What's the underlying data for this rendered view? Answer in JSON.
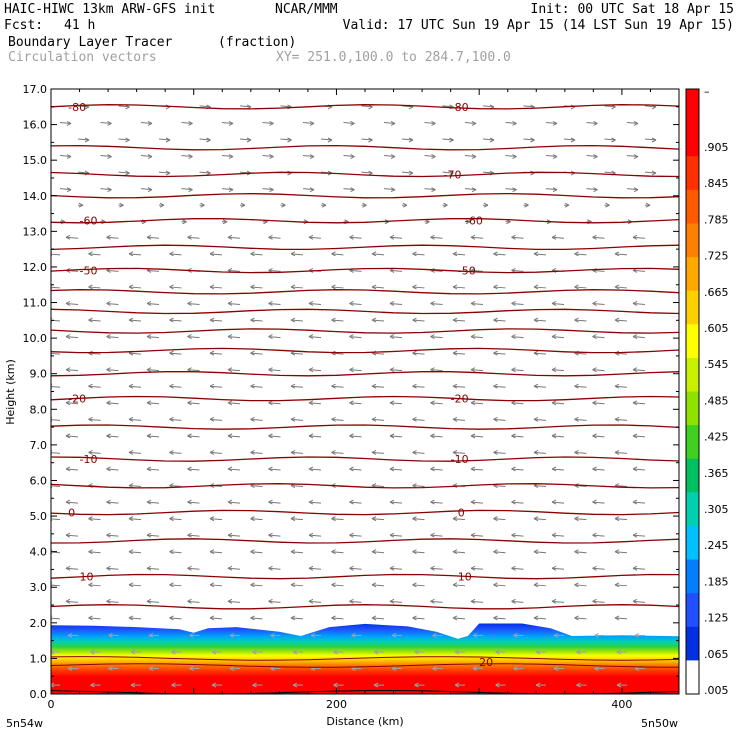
{
  "header": {
    "model": "HAIC-HIWC 13km ARW-GFS init",
    "org": "NCAR/MMM",
    "init": "Init: 00 UTC Sat 18 Apr 15",
    "fcst_label": "Fcst:",
    "fcst_value": "41 h",
    "valid": "Valid: 17 UTC Sun 19 Apr 15 (14 LST Sun 19 Apr 15)",
    "field": "Boundary Layer Tracer",
    "units": "(fraction)",
    "vectors": "Circulation vectors",
    "xy": "XY= 251.0,100.0 to 284.7,100.0"
  },
  "chart_data": {
    "type": "heatmap",
    "xlabel": "Distance (km)",
    "ylabel": "Height (km)",
    "xlim": [
      0,
      440
    ],
    "ylim": [
      0,
      17
    ],
    "x_ticks": [
      0,
      200,
      400
    ],
    "y_ticks": [
      "0.0",
      "1.0",
      "2.0",
      "3.0",
      "4.0",
      "5.0",
      "6.0",
      "7.0",
      "8.0",
      "9.0",
      "10.0",
      "11.0",
      "12.0",
      "13.0",
      "14.0",
      "15.0",
      "16.0",
      "17.0"
    ],
    "x_end_labels": {
      "left": "5n54w",
      "right": "5n50w"
    },
    "colorbar": {
      "labels": [
        ".905",
        ".845",
        ".785",
        ".725",
        ".665",
        ".605",
        ".545",
        ".485",
        ".425",
        ".365",
        ".305",
        ".245",
        ".185",
        ".125",
        ".065",
        ".005"
      ],
      "colors": [
        "#ff0000",
        "#ff0000",
        "#ff3000",
        "#ff5a00",
        "#ff8000",
        "#ffa800",
        "#ffd000",
        "#ffff00",
        "#c8f000",
        "#90e000",
        "#40d020",
        "#00c060",
        "#00d0b0",
        "#00c0ff",
        "#0080ff",
        "#2050ff",
        "#0030e0",
        "#ffffff"
      ]
    },
    "contour_labels": [
      {
        "text": "-80",
        "x": 12,
        "y": 16.5
      },
      {
        "text": "-80",
        "x": 280,
        "y": 16.5
      },
      {
        "text": "-70",
        "x": 275,
        "y": 14.6
      },
      {
        "text": "-60",
        "x": 20,
        "y": 13.3
      },
      {
        "text": "-60",
        "x": 290,
        "y": 13.3
      },
      {
        "text": "-50",
        "x": 20,
        "y": 11.9
      },
      {
        "text": "-50",
        "x": 285,
        "y": 11.9
      },
      {
        "text": "-20",
        "x": 12,
        "y": 8.3
      },
      {
        "text": "-20",
        "x": 280,
        "y": 8.3
      },
      {
        "text": "-10",
        "x": 20,
        "y": 6.6
      },
      {
        "text": "-10",
        "x": 280,
        "y": 6.6
      },
      {
        "text": "0",
        "x": 12,
        "y": 5.1
      },
      {
        "text": "0",
        "x": 285,
        "y": 5.1
      },
      {
        "text": "10",
        "x": 20,
        "y": 3.3
      },
      {
        "text": "10",
        "x": 285,
        "y": 3.3
      },
      {
        "text": "20",
        "x": 300,
        "y": 0.9
      }
    ],
    "contour_levels_km": [
      16.5,
      15.35,
      14.6,
      14.0,
      13.3,
      12.55,
      11.9,
      11.3,
      10.75,
      10.2,
      9.65,
      9.0,
      8.3,
      7.5,
      6.6,
      5.85,
      5.1,
      4.3,
      3.3,
      2.45
    ],
    "pbl_top_km": [
      [
        0,
        1.93
      ],
      [
        30,
        1.92
      ],
      [
        60,
        1.88
      ],
      [
        90,
        1.82
      ],
      [
        100,
        1.72
      ],
      [
        110,
        1.85
      ],
      [
        130,
        1.88
      ],
      [
        160,
        1.75
      ],
      [
        175,
        1.63
      ],
      [
        195,
        1.88
      ],
      [
        220,
        1.97
      ],
      [
        250,
        1.9
      ],
      [
        270,
        1.75
      ],
      [
        285,
        1.55
      ],
      [
        292,
        1.63
      ],
      [
        300,
        1.98
      ],
      [
        330,
        1.98
      ],
      [
        350,
        1.85
      ],
      [
        365,
        1.63
      ],
      [
        400,
        1.65
      ],
      [
        440,
        1.62
      ]
    ]
  }
}
